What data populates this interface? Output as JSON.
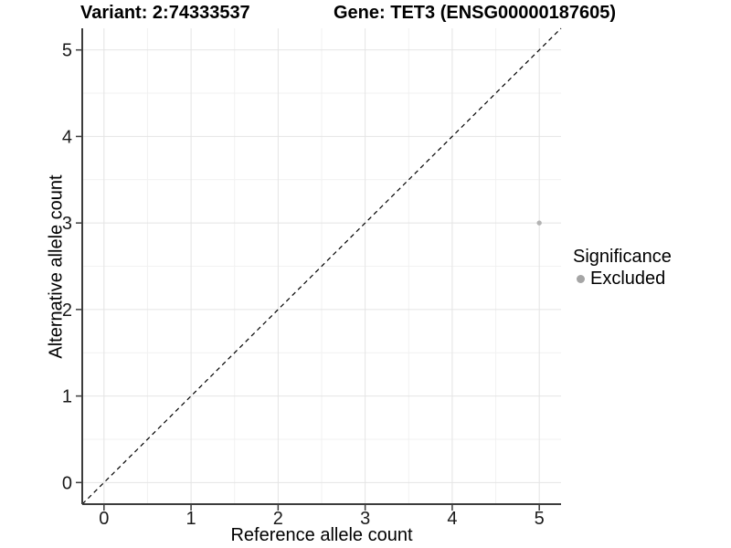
{
  "chart_data": {
    "type": "scatter",
    "title_left": "Variant: 2:74333537",
    "title_right": "Gene: TET3 (ENSG00000187605)",
    "xlabel": "Reference allele count",
    "ylabel": "Alternative allele count",
    "xlim": [
      -0.25,
      5.25
    ],
    "ylim": [
      -0.25,
      5.25
    ],
    "xticks": [
      0,
      1,
      2,
      3,
      4,
      5
    ],
    "yticks": [
      0,
      1,
      2,
      3,
      4,
      5
    ],
    "xminor": [
      0.5,
      1.5,
      2.5,
      3.5,
      4.5
    ],
    "yminor": [
      0.5,
      1.5,
      2.5,
      3.5,
      4.5
    ],
    "grid": true,
    "legend": {
      "title": "Significance",
      "position": "right",
      "items": [
        {
          "label": "Excluded",
          "color": "#a5a5a5"
        }
      ]
    },
    "series": [
      {
        "name": "Excluded",
        "color": "#b3b3b3",
        "points": [
          {
            "x": 5,
            "y": 3
          }
        ]
      }
    ],
    "identity_line": {
      "style": "dashed",
      "color": "#000000",
      "from": [
        -0.25,
        -0.25
      ],
      "to": [
        5.25,
        5.25
      ]
    },
    "colors": {
      "grid_major": "#e4e4e4",
      "grid_minor": "#f1f1f1",
      "axis_line": "#3c3c3c",
      "tick_mark": "#3c3c3c",
      "tick_label": "#1a1a1a",
      "background": "#ffffff"
    }
  }
}
